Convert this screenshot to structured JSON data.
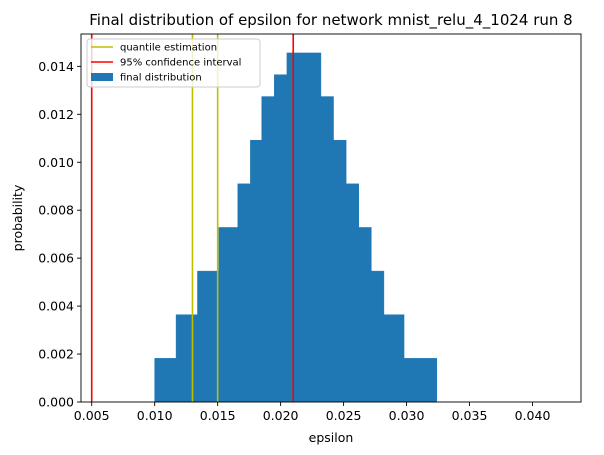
{
  "chart_data": {
    "type": "bar",
    "title": "Final distribution of epsilon for network mnist_relu_4_1024 run 8",
    "xlabel": "epsilon",
    "ylabel": "probability",
    "xlim": [
      0.00415,
      0.04385
    ],
    "ylim": [
      0,
      0.01535
    ],
    "xticks": [
      0.005,
      0.01,
      0.015,
      0.02,
      0.025,
      0.03,
      0.035,
      0.04
    ],
    "xtick_labels": [
      "0.005",
      "0.010",
      "0.015",
      "0.020",
      "0.025",
      "0.030",
      "0.035",
      "0.040"
    ],
    "yticks": [
      0.0,
      0.002,
      0.004,
      0.006,
      0.008,
      0.01,
      0.012,
      0.014
    ],
    "ytick_labels": [
      "0.000",
      "0.002",
      "0.004",
      "0.006",
      "0.008",
      "0.010",
      "0.012",
      "0.014"
    ],
    "bins": [
      {
        "x0": 0.01,
        "x1": 0.0117,
        "value": 0.00182
      },
      {
        "x0": 0.0117,
        "x1": 0.0134,
        "value": 0.00364
      },
      {
        "x0": 0.0134,
        "x1": 0.0151,
        "value": 0.00546
      },
      {
        "x0": 0.0151,
        "x1": 0.0166,
        "value": 0.00728
      },
      {
        "x0": 0.0166,
        "x1": 0.0176,
        "value": 0.0091
      },
      {
        "x0": 0.0176,
        "x1": 0.0185,
        "value": 0.01092
      },
      {
        "x0": 0.0185,
        "x1": 0.0195,
        "value": 0.01274
      },
      {
        "x0": 0.0195,
        "x1": 0.0205,
        "value": 0.01365
      },
      {
        "x0": 0.0205,
        "x1": 0.0232,
        "value": 0.01456
      },
      {
        "x0": 0.0232,
        "x1": 0.0242,
        "value": 0.01274
      },
      {
        "x0": 0.0242,
        "x1": 0.0252,
        "value": 0.01092
      },
      {
        "x0": 0.0252,
        "x1": 0.0262,
        "value": 0.0091
      },
      {
        "x0": 0.0262,
        "x1": 0.0272,
        "value": 0.00728
      },
      {
        "x0": 0.0272,
        "x1": 0.0282,
        "value": 0.00546
      },
      {
        "x0": 0.0282,
        "x1": 0.0298,
        "value": 0.00364
      },
      {
        "x0": 0.0298,
        "x1": 0.0324,
        "value": 0.00182
      }
    ],
    "vlines": [
      {
        "x": 0.013,
        "color": "#bfbf00",
        "series": "quantile estimation"
      },
      {
        "x": 0.015,
        "color": "#bfbf00",
        "series": "quantile estimation"
      },
      {
        "x": 0.005,
        "color": "#ff0000",
        "series": "95% confidence interval"
      },
      {
        "x": 0.021,
        "color": "#ff0000",
        "series": "95% confidence interval"
      }
    ],
    "legend": {
      "placement": "upper-left",
      "entries": [
        {
          "label": "quantile estimation",
          "color": "#bfbf00",
          "kind": "line"
        },
        {
          "label": "95% confidence interval",
          "color": "#ff0000",
          "kind": "line"
        },
        {
          "label": "final distribution",
          "color": "#1f77b4",
          "kind": "patch"
        }
      ]
    },
    "bar_color": "#1f77b4",
    "grid": false
  }
}
